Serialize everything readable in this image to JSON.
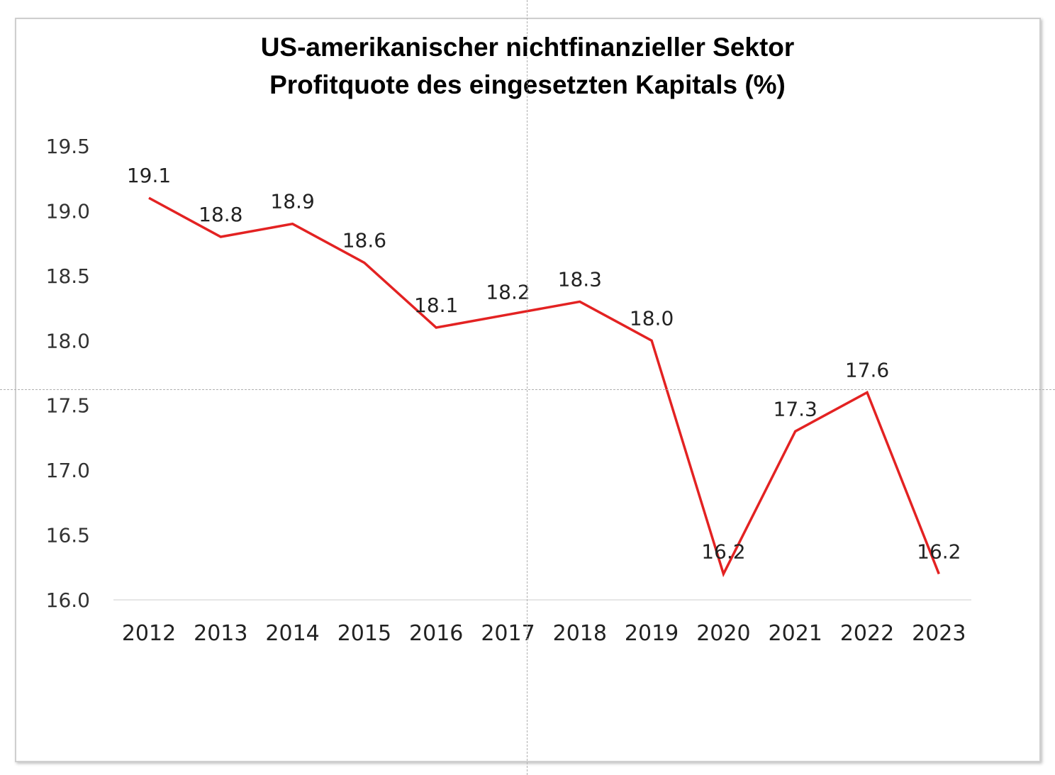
{
  "chart_data": {
    "type": "line",
    "title_lines": [
      "US-amerikanischer nichtfinanzieller Sektor",
      "Profitquote des eingesetzten Kapitals (%)"
    ],
    "categories": [
      "2012",
      "2013",
      "2014",
      "2015",
      "2016",
      "2017",
      "2018",
      "2019",
      "2020",
      "2021",
      "2022",
      "2023"
    ],
    "series": [
      {
        "name": "Profitquote",
        "color": "#e32222",
        "values": [
          19.1,
          18.8,
          18.9,
          18.6,
          18.1,
          18.2,
          18.3,
          18.0,
          16.2,
          17.3,
          17.6,
          16.2
        ],
        "labels": [
          "19.1",
          "18.8",
          "18.9",
          "18.6",
          "18.1",
          "18.2",
          "18.3",
          "18.0",
          "16.2",
          "17.3",
          "17.6",
          "16.2"
        ]
      }
    ],
    "yticks": [
      "16.0",
      "16.5",
      "17.0",
      "17.5",
      "18.0",
      "18.5",
      "19.0",
      "19.5"
    ],
    "ylim": [
      16.0,
      19.5
    ],
    "xlabel": "",
    "ylabel": "",
    "grid": false,
    "legend": "none"
  }
}
